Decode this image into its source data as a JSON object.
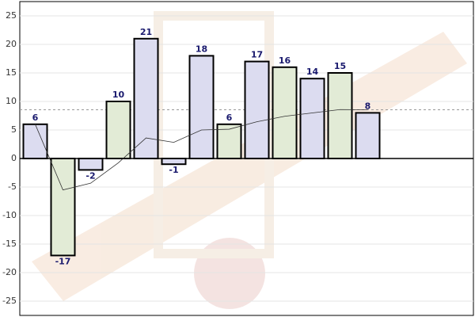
{
  "chart_data": {
    "type": "bar",
    "values": [
      6,
      -17,
      -2,
      10,
      21,
      -1,
      18,
      6,
      17,
      16,
      14,
      15,
      8
    ],
    "colors": [
      "#dcdcf0",
      "#e2ebd6",
      "#dcdcf0",
      "#e2ebd6",
      "#dcdcf0",
      "#dcdcf0",
      "#dcdcf0",
      "#e2ebd6",
      "#dcdcf0",
      "#e2ebd6",
      "#dcdcf0",
      "#e2ebd6",
      "#dcdcf0"
    ],
    "trend": {
      "color": "#333333",
      "values": [
        6,
        -5.5,
        -4.33,
        -0.75,
        3.6,
        2.83,
        5,
        5.13,
        6.44,
        7.4,
        7.99,
        8.58,
        8.54
      ]
    },
    "reference_line": 8.54,
    "ylim": [
      -27.5,
      27.5
    ],
    "yticks": [
      -25,
      -20,
      -15,
      -10,
      -5,
      0,
      5,
      10,
      15,
      20,
      25
    ],
    "grid": true
  }
}
